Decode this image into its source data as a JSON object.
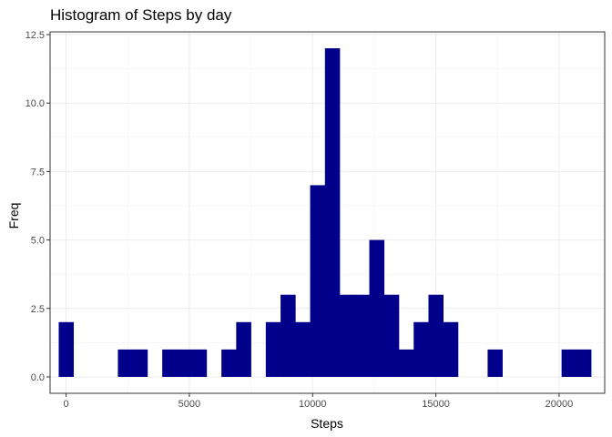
{
  "chart_data": {
    "type": "bar",
    "title": "Histogram of Steps by day",
    "xlabel": "Steps",
    "ylabel": "Freq",
    "bin_width": 600,
    "x_range": [
      -650,
      21850
    ],
    "y_range": [
      -0.6,
      12.6
    ],
    "x_ticks": [
      0,
      5000,
      10000,
      15000,
      20000
    ],
    "x_tick_labels": [
      "0",
      "5000",
      "10000",
      "15000",
      "20000"
    ],
    "y_ticks": [
      0,
      2.5,
      5,
      7.5,
      10,
      12.5
    ],
    "y_tick_labels": [
      "0.0",
      "2.5",
      "5.0",
      "7.5",
      "10.0",
      "12.5"
    ],
    "bar_color": "#00008B",
    "grid": true,
    "bins": [
      {
        "x0": -300,
        "x1": 300,
        "count": 2
      },
      {
        "x0": 2100,
        "x1": 2700,
        "count": 1
      },
      {
        "x0": 2700,
        "x1": 3300,
        "count": 1
      },
      {
        "x0": 3900,
        "x1": 4500,
        "count": 1
      },
      {
        "x0": 4500,
        "x1": 5100,
        "count": 1
      },
      {
        "x0": 5100,
        "x1": 5700,
        "count": 1
      },
      {
        "x0": 6300,
        "x1": 6900,
        "count": 1
      },
      {
        "x0": 6900,
        "x1": 7500,
        "count": 2
      },
      {
        "x0": 8100,
        "x1": 8700,
        "count": 2
      },
      {
        "x0": 8700,
        "x1": 9300,
        "count": 3
      },
      {
        "x0": 9300,
        "x1": 9900,
        "count": 2
      },
      {
        "x0": 9900,
        "x1": 10500,
        "count": 7
      },
      {
        "x0": 10500,
        "x1": 11100,
        "count": 12
      },
      {
        "x0": 11100,
        "x1": 11700,
        "count": 3
      },
      {
        "x0": 11700,
        "x1": 12300,
        "count": 3
      },
      {
        "x0": 12300,
        "x1": 12900,
        "count": 5
      },
      {
        "x0": 12900,
        "x1": 13500,
        "count": 3
      },
      {
        "x0": 13500,
        "x1": 14100,
        "count": 1
      },
      {
        "x0": 14100,
        "x1": 14700,
        "count": 2
      },
      {
        "x0": 14700,
        "x1": 15300,
        "count": 3
      },
      {
        "x0": 15300,
        "x1": 15900,
        "count": 2
      },
      {
        "x0": 17100,
        "x1": 17700,
        "count": 1
      },
      {
        "x0": 20100,
        "x1": 20700,
        "count": 1
      },
      {
        "x0": 20700,
        "x1": 21300,
        "count": 1
      }
    ]
  }
}
